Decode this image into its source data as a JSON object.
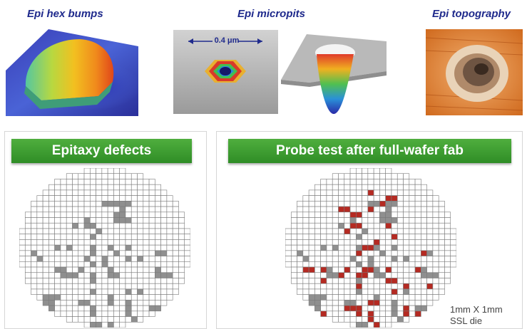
{
  "top": {
    "hex_bumps": {
      "caption": "Epi hex bumps"
    },
    "micropits": {
      "caption": "Epi micropits",
      "scale_label": "0.4 μm"
    },
    "topography": {
      "caption": "Epi topography"
    }
  },
  "left_panel": {
    "title": "Epitaxy defects",
    "grid": {
      "cols": 29,
      "rows": 29
    },
    "defect_color": "#8f8f8f",
    "defect_cells": [
      [
        14,
        6
      ],
      [
        15,
        6
      ],
      [
        16,
        6
      ],
      [
        17,
        6
      ],
      [
        18,
        6
      ],
      [
        17,
        7
      ],
      [
        16,
        8
      ],
      [
        17,
        8
      ],
      [
        16,
        9
      ],
      [
        17,
        9
      ],
      [
        11,
        9
      ],
      [
        18,
        9
      ],
      [
        9,
        10
      ],
      [
        11,
        10
      ],
      [
        12,
        10
      ],
      [
        13,
        11
      ],
      [
        12,
        12
      ],
      [
        6,
        14
      ],
      [
        8,
        14
      ],
      [
        12,
        14
      ],
      [
        15,
        14
      ],
      [
        18,
        14
      ],
      [
        2,
        15
      ],
      [
        12,
        15
      ],
      [
        16,
        15
      ],
      [
        23,
        15
      ],
      [
        24,
        15
      ],
      [
        3,
        16
      ],
      [
        11,
        16
      ],
      [
        14,
        16
      ],
      [
        18,
        16
      ],
      [
        20,
        16
      ],
      [
        12,
        17
      ],
      [
        14,
        17
      ],
      [
        6,
        18
      ],
      [
        7,
        18
      ],
      [
        10,
        18
      ],
      [
        15,
        18
      ],
      [
        23,
        18
      ],
      [
        7,
        19
      ],
      [
        8,
        19
      ],
      [
        9,
        19
      ],
      [
        12,
        19
      ],
      [
        15,
        19
      ],
      [
        16,
        19
      ],
      [
        23,
        19
      ],
      [
        24,
        19
      ],
      [
        25,
        19
      ],
      [
        12,
        20
      ],
      [
        12,
        22
      ],
      [
        18,
        22
      ],
      [
        20,
        22
      ],
      [
        4,
        23
      ],
      [
        5,
        23
      ],
      [
        6,
        23
      ],
      [
        15,
        23
      ],
      [
        4,
        24
      ],
      [
        5,
        24
      ],
      [
        10,
        24
      ],
      [
        11,
        24
      ],
      [
        15,
        24
      ],
      [
        18,
        24
      ],
      [
        5,
        25
      ],
      [
        12,
        25
      ],
      [
        18,
        25
      ],
      [
        22,
        25
      ],
      [
        23,
        25
      ],
      [
        24,
        25
      ],
      [
        12,
        26
      ],
      [
        18,
        26
      ],
      [
        23,
        26
      ],
      [
        24,
        26
      ],
      [
        19,
        27
      ],
      [
        12,
        28
      ],
      [
        13,
        28
      ],
      [
        15,
        28
      ]
    ]
  },
  "right_panel": {
    "title": "Probe test after full-wafer fab",
    "grid": {
      "cols": 29,
      "rows": 29
    },
    "defect_color": "#8f8f8f",
    "fail_color": "#b52a22",
    "defect_cells": [
      [
        14,
        6
      ],
      [
        15,
        6
      ],
      [
        16,
        6
      ],
      [
        17,
        6
      ],
      [
        18,
        6
      ],
      [
        17,
        7
      ],
      [
        16,
        8
      ],
      [
        17,
        8
      ],
      [
        16,
        9
      ],
      [
        17,
        9
      ],
      [
        11,
        9
      ],
      [
        18,
        9
      ],
      [
        9,
        10
      ],
      [
        11,
        10
      ],
      [
        12,
        10
      ],
      [
        13,
        11
      ],
      [
        12,
        12
      ],
      [
        6,
        14
      ],
      [
        8,
        14
      ],
      [
        12,
        14
      ],
      [
        15,
        14
      ],
      [
        18,
        14
      ],
      [
        2,
        15
      ],
      [
        12,
        15
      ],
      [
        16,
        15
      ],
      [
        23,
        15
      ],
      [
        24,
        15
      ],
      [
        3,
        16
      ],
      [
        11,
        16
      ],
      [
        14,
        16
      ],
      [
        18,
        16
      ],
      [
        20,
        16
      ],
      [
        12,
        17
      ],
      [
        14,
        17
      ],
      [
        6,
        18
      ],
      [
        7,
        18
      ],
      [
        10,
        18
      ],
      [
        15,
        18
      ],
      [
        23,
        18
      ],
      [
        7,
        19
      ],
      [
        8,
        19
      ],
      [
        9,
        19
      ],
      [
        12,
        19
      ],
      [
        15,
        19
      ],
      [
        16,
        19
      ],
      [
        23,
        19
      ],
      [
        24,
        19
      ],
      [
        25,
        19
      ],
      [
        12,
        20
      ],
      [
        12,
        22
      ],
      [
        18,
        22
      ],
      [
        20,
        22
      ],
      [
        4,
        23
      ],
      [
        5,
        23
      ],
      [
        6,
        23
      ],
      [
        15,
        23
      ],
      [
        4,
        24
      ],
      [
        5,
        24
      ],
      [
        10,
        24
      ],
      [
        11,
        24
      ],
      [
        15,
        24
      ],
      [
        18,
        24
      ],
      [
        5,
        25
      ],
      [
        12,
        25
      ],
      [
        18,
        25
      ],
      [
        22,
        25
      ],
      [
        23,
        25
      ],
      [
        24,
        25
      ],
      [
        12,
        26
      ],
      [
        18,
        26
      ],
      [
        23,
        26
      ],
      [
        24,
        26
      ],
      [
        19,
        27
      ],
      [
        12,
        28
      ],
      [
        13,
        28
      ],
      [
        15,
        28
      ]
    ],
    "fail_cells": [
      [
        14,
        4
      ],
      [
        17,
        5
      ],
      [
        18,
        5
      ],
      [
        16,
        6
      ],
      [
        9,
        7
      ],
      [
        10,
        7
      ],
      [
        14,
        7
      ],
      [
        11,
        8
      ],
      [
        12,
        8
      ],
      [
        11,
        10
      ],
      [
        12,
        10
      ],
      [
        17,
        10
      ],
      [
        10,
        11
      ],
      [
        18,
        12
      ],
      [
        15,
        13
      ],
      [
        13,
        14
      ],
      [
        14,
        14
      ],
      [
        12,
        15
      ],
      [
        23,
        15
      ],
      [
        3,
        18
      ],
      [
        4,
        18
      ],
      [
        6,
        18
      ],
      [
        10,
        18
      ],
      [
        13,
        18
      ],
      [
        14,
        18
      ],
      [
        17,
        18
      ],
      [
        22,
        18
      ],
      [
        9,
        19
      ],
      [
        12,
        19
      ],
      [
        13,
        19
      ],
      [
        6,
        20
      ],
      [
        17,
        20
      ],
      [
        18,
        20
      ],
      [
        12,
        21
      ],
      [
        20,
        21
      ],
      [
        24,
        21
      ],
      [
        27,
        21
      ],
      [
        18,
        22
      ],
      [
        3,
        24
      ],
      [
        14,
        24
      ],
      [
        15,
        24
      ],
      [
        10,
        25
      ],
      [
        11,
        25
      ],
      [
        12,
        25
      ],
      [
        20,
        25
      ],
      [
        6,
        26
      ],
      [
        12,
        26
      ],
      [
        14,
        26
      ],
      [
        20,
        26
      ],
      [
        22,
        26
      ],
      [
        14,
        27
      ],
      [
        23,
        27
      ],
      [
        15,
        28
      ],
      [
        22,
        28
      ],
      [
        23,
        28
      ]
    ],
    "die_label_line1": "1mm X 1mm",
    "die_label_line2": "SSL die"
  }
}
